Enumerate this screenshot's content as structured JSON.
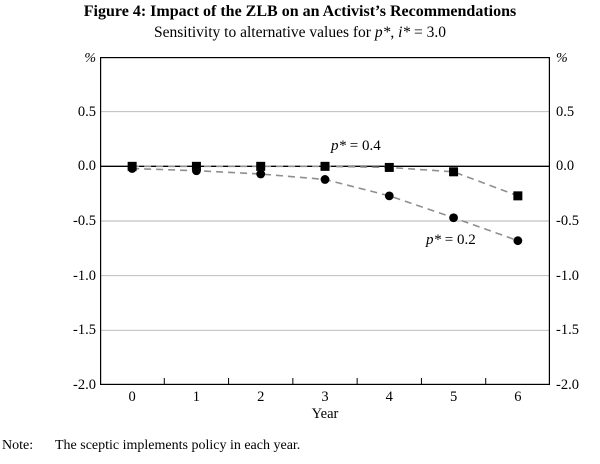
{
  "figure": {
    "title": "Figure 4: Impact of the ZLB on an Activist’s Recommendations",
    "subtitle": {
      "lead": "Sensitivity to alternative values for ",
      "p_var": "p*",
      "mid": ", ",
      "i_var": "i*",
      "tail": " = 3.0"
    },
    "note": {
      "label": "Note:",
      "text": "The sceptic implements policy in each year."
    }
  },
  "chart_data": {
    "type": "line",
    "x": [
      "0",
      "1",
      "2",
      "3",
      "4",
      "5",
      "6"
    ],
    "xlabel": "Year",
    "y_unit": "%",
    "ylim": [
      -2.0,
      1.0
    ],
    "grid_on": true,
    "legend_position": "inline-annotations",
    "yticks": [
      {
        "value": 0.5,
        "label": "0.5"
      },
      {
        "value": 0.0,
        "label": "0.0"
      },
      {
        "value": -0.5,
        "label": "-0.5"
      },
      {
        "value": -1.0,
        "label": "-1.0"
      },
      {
        "value": -1.5,
        "label": "-1.5"
      },
      {
        "value": -2.0,
        "label": "-2.0"
      }
    ],
    "gridlines": [
      0.5,
      -0.5,
      -1.0,
      -1.5
    ],
    "zero_line": true,
    "series": [
      {
        "name": "p* = 0.4",
        "marker": "square",
        "values": [
          0.0,
          0.0,
          0.0,
          0.0,
          -0.01,
          -0.05,
          -0.27
        ]
      },
      {
        "name": "p* = 0.2",
        "marker": "circle",
        "values": [
          -0.02,
          -0.04,
          -0.07,
          -0.12,
          -0.27,
          -0.47,
          -0.68
        ]
      }
    ],
    "annotations": [
      {
        "var": "p*",
        "rest": " = 0.4"
      },
      {
        "var": "p*",
        "rest": " = 0.2"
      }
    ],
    "colors": {
      "line": "#8f8f8f",
      "marker": "#000000",
      "grid": "#b3b3b3",
      "axis": "#000000"
    }
  }
}
